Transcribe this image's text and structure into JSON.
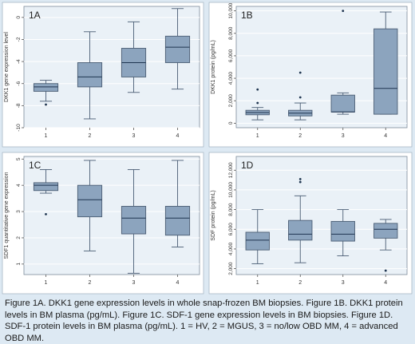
{
  "caption": "Figure 1A. DKK1 gene expression levels in whole snap-frozen BM biopsies. Figure 1B. DKK1 protein levels in BM plasma (pg/mL). Figure 1C. SDF-1 gene expression levels in BM biopsies. Figure 1D. SDF-1 protein levels in BM plasma (pg/mL). 1 = HV, 2 = MGUS, 3 = no/low OBD MM, 4 = advanced OBD MM.",
  "colors": {
    "box_fill": "#8ca4be",
    "box_stroke": "#4a5d74",
    "median": "#1f3550",
    "panel_bg": "#eaf1f7",
    "outer_bg": "#dde9f3"
  },
  "chart_data": [
    {
      "type": "box",
      "panel_label": "1A",
      "ylabel": "DKK1 gene expression level",
      "ylim": [
        -10,
        1
      ],
      "yticks": [
        -10,
        -8,
        -6,
        -4,
        -2,
        0
      ],
      "ytick_labels": [
        "-10",
        "-8",
        "-6",
        "-4",
        "-2",
        "0"
      ],
      "categories": [
        "1",
        "2",
        "3",
        "4"
      ],
      "boxes": [
        {
          "whisker_low": -7.6,
          "q1": -6.7,
          "median": -6.3,
          "q3": -6.0,
          "whisker_high": -5.7,
          "outliers": [
            -7.9
          ]
        },
        {
          "whisker_low": -9.2,
          "q1": -6.3,
          "median": -5.4,
          "q3": -4.1,
          "whisker_high": -1.3,
          "outliers": []
        },
        {
          "whisker_low": -6.8,
          "q1": -5.4,
          "median": -4.1,
          "q3": -2.8,
          "whisker_high": -0.4,
          "outliers": []
        },
        {
          "whisker_low": -6.5,
          "q1": -4.1,
          "median": -2.7,
          "q3": -1.7,
          "whisker_high": 0.8,
          "outliers": []
        }
      ]
    },
    {
      "type": "box",
      "panel_label": "1B",
      "ylabel": "DKK1 protein (pg/mL)",
      "ylim": [
        -400,
        10400
      ],
      "yticks": [
        0,
        2000,
        4000,
        6000,
        8000,
        10000
      ],
      "ytick_labels": [
        "0",
        "2,000",
        "4,000",
        "6,000",
        "8,000",
        "10,000"
      ],
      "categories": [
        "1",
        "2",
        "3",
        "4"
      ],
      "boxes": [
        {
          "whisker_low": 300,
          "q1": 750,
          "median": 950,
          "q3": 1150,
          "whisker_high": 1400,
          "outliers": [
            1800,
            3000
          ]
        },
        {
          "whisker_low": 300,
          "q1": 650,
          "median": 900,
          "q3": 1150,
          "whisker_high": 1800,
          "outliers": [
            2300,
            4500
          ]
        },
        {
          "whisker_low": 800,
          "q1": 1000,
          "median": 1000,
          "q3": 2500,
          "whisker_high": 2700,
          "outliers": [
            10000
          ]
        },
        {
          "whisker_low": 800,
          "q1": 800,
          "median": 3100,
          "q3": 8400,
          "whisker_high": 9900,
          "outliers": []
        }
      ]
    },
    {
      "type": "box",
      "panel_label": "1C",
      "ylabel": "SDF1 quantitative gene expression",
      "ylim": [
        0.6,
        5.1
      ],
      "yticks": [
        1,
        2,
        3,
        4,
        5
      ],
      "ytick_labels": [
        "1",
        "2",
        "3",
        "4",
        "5"
      ],
      "categories": [
        "1",
        "2",
        "3",
        "4"
      ],
      "boxes": [
        {
          "whisker_low": 3.7,
          "q1": 3.8,
          "median": 4.0,
          "q3": 4.1,
          "whisker_high": 4.6,
          "outliers": [
            2.9
          ]
        },
        {
          "whisker_low": 1.5,
          "q1": 2.8,
          "median": 3.45,
          "q3": 4.0,
          "whisker_high": 4.95,
          "outliers": []
        },
        {
          "whisker_low": 0.65,
          "q1": 2.15,
          "median": 2.75,
          "q3": 3.2,
          "whisker_high": 4.6,
          "outliers": []
        },
        {
          "whisker_low": 1.65,
          "q1": 2.1,
          "median": 2.75,
          "q3": 3.2,
          "whisker_high": 4.95,
          "outliers": []
        }
      ]
    },
    {
      "type": "box",
      "panel_label": "1D",
      "ylabel": "SDF protein (pg/mL)",
      "ylim": [
        1400,
        13400
      ],
      "yticks": [
        2000,
        4000,
        6000,
        8000,
        10000,
        12000
      ],
      "ytick_labels": [
        "2,000",
        "4,000",
        "6,000",
        "8,000",
        "10,000",
        "12,000"
      ],
      "categories": [
        "1",
        "2",
        "3",
        "4"
      ],
      "boxes": [
        {
          "whisker_low": 2500,
          "q1": 3900,
          "median": 4900,
          "q3": 5700,
          "whisker_high": 8000,
          "outliers": []
        },
        {
          "whisker_low": 2600,
          "q1": 4900,
          "median": 5500,
          "q3": 6900,
          "whisker_high": 9400,
          "outliers": [
            10800,
            11100
          ]
        },
        {
          "whisker_low": 3300,
          "q1": 4800,
          "median": 5500,
          "q3": 6800,
          "whisker_high": 8000,
          "outliers": []
        },
        {
          "whisker_low": 3900,
          "q1": 5100,
          "median": 6000,
          "q3": 6600,
          "whisker_high": 7000,
          "outliers": [
            1800
          ]
        }
      ]
    }
  ]
}
